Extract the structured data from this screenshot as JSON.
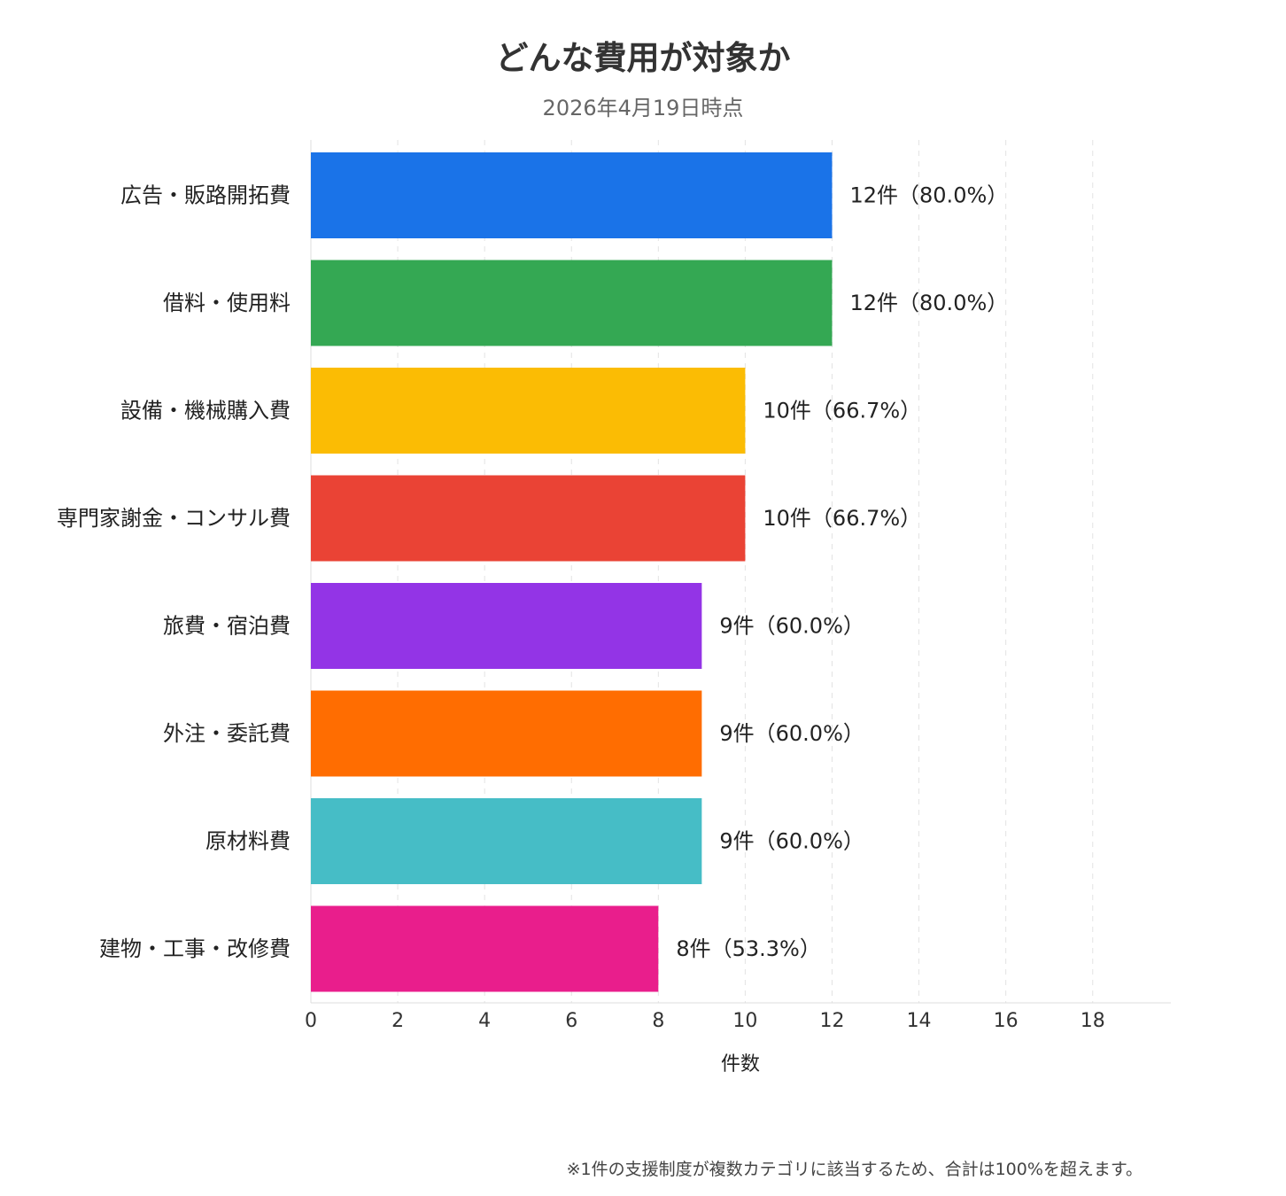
{
  "chart_data": {
    "type": "bar",
    "orientation": "horizontal",
    "title": "どんな費用が対象か",
    "subtitle": "2026年4月19日時点",
    "xlabel": "件数",
    "ylabel": "",
    "xlim": [
      0,
      19.8
    ],
    "xticks": [
      0,
      2,
      4,
      6,
      8,
      10,
      12,
      14,
      16,
      18
    ],
    "grid": true,
    "legend": "none",
    "categories": [
      "広告・販路開拓費",
      "借料・使用料",
      "設備・機械購入費",
      "専門家謝金・コンサル費",
      "旅費・宿泊費",
      "外注・委託費",
      "原材料費",
      "建物・工事・改修費"
    ],
    "values": [
      12,
      12,
      10,
      10,
      9,
      9,
      9,
      8
    ],
    "data_labels": [
      "12件（80.0%）",
      "12件（80.0%）",
      "10件（66.7%）",
      "10件（66.7%）",
      "9件（60.0%）",
      "9件（60.0%）",
      "9件（60.0%）",
      "8件（53.3%）"
    ],
    "colors": [
      "#1a73e8",
      "#34a853",
      "#fbbc04",
      "#ea4335",
      "#9334e6",
      "#ff6d01",
      "#46bdc6",
      "#e91e8c"
    ]
  },
  "footnote": "※1件の支援制度が複数カテゴリに該当するため、合計は100%を超えます。"
}
